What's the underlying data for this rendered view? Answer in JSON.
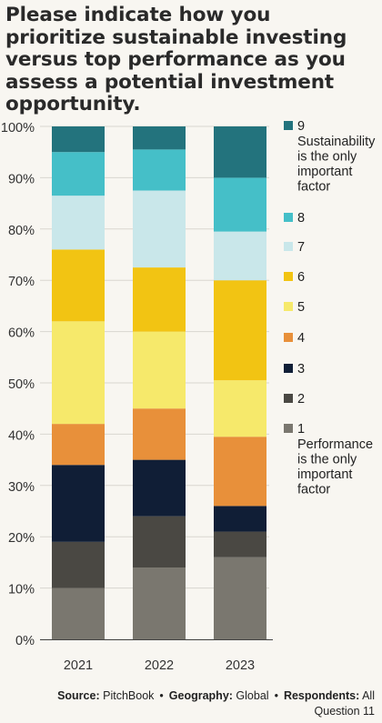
{
  "title": "Please indicate how you prioritize sustainable investing versus top performance as you assess a potential investment opportunity.",
  "footer": {
    "source_label": "Source:",
    "source_value": "PitchBook",
    "bullet": "•",
    "geography_label": "Geography:",
    "geography_value": "Global",
    "respondents_label": "Respondents:",
    "respondents_value": "All",
    "question": "Question 11"
  },
  "chart_data": {
    "type": "bar",
    "stacked": true,
    "title": "Please indicate how you prioritize sustainable investing versus top performance as you assess a potential investment opportunity.",
    "categories": [
      "2021",
      "2022",
      "2023"
    ],
    "ylim": [
      0,
      100
    ],
    "yticks": [
      "0%",
      "10%",
      "20%",
      "30%",
      "40%",
      "50%",
      "60%",
      "70%",
      "80%",
      "90%",
      "100%"
    ],
    "legend_position": "right",
    "series": [
      {
        "name": "1",
        "sublabel": [
          "Performance",
          "is the only",
          "important",
          "factor"
        ],
        "color": "#7a776f",
        "values": [
          10,
          14,
          16
        ]
      },
      {
        "name": "2",
        "color": "#4a4843",
        "values": [
          9,
          10,
          5
        ]
      },
      {
        "name": "3",
        "color": "#101e36",
        "values": [
          15,
          11,
          5
        ]
      },
      {
        "name": "4",
        "color": "#e8903a",
        "values": [
          8,
          10,
          13.5
        ]
      },
      {
        "name": "5",
        "color": "#f6e96b",
        "values": [
          20,
          15,
          11
        ]
      },
      {
        "name": "6",
        "color": "#f2c413",
        "values": [
          14,
          12.5,
          19.5
        ]
      },
      {
        "name": "7",
        "color": "#c9e7ea",
        "values": [
          10.5,
          15,
          9.5
        ]
      },
      {
        "name": "8",
        "color": "#45bfc8",
        "values": [
          8.5,
          8,
          10.5
        ]
      },
      {
        "name": "9",
        "sublabel": [
          "Sustainability",
          "is the only",
          "important",
          "factor"
        ],
        "color": "#23737d",
        "values": [
          5,
          4.5,
          10
        ]
      }
    ]
  }
}
